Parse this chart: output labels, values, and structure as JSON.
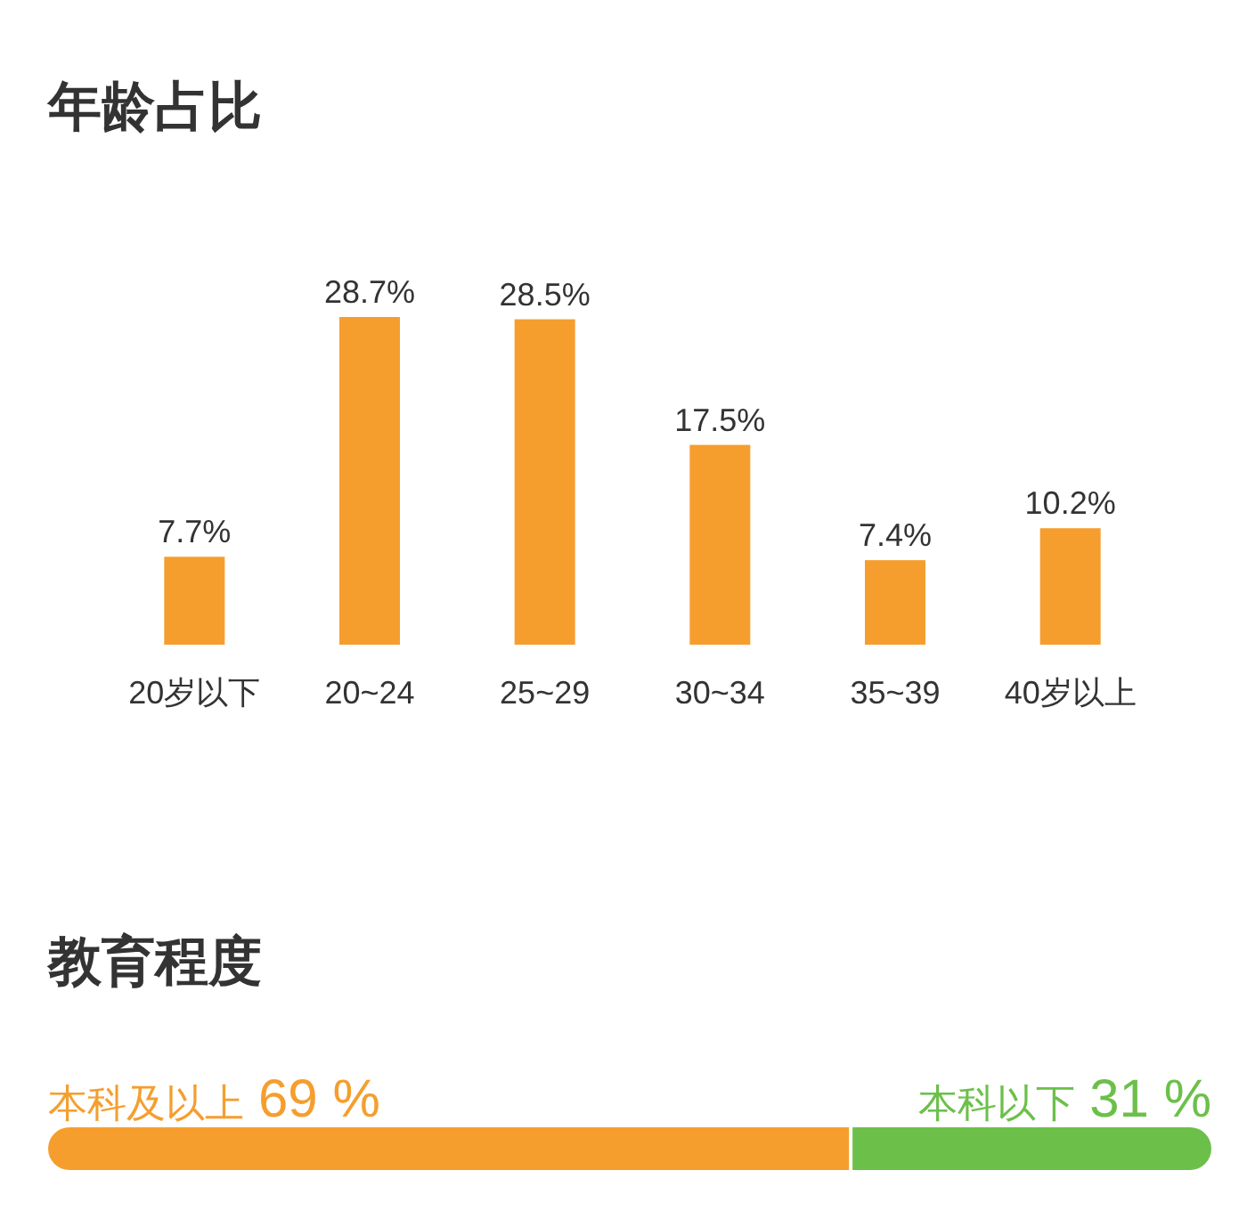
{
  "chart_data": [
    {
      "type": "bar",
      "title": "年龄占比",
      "categories": [
        "20岁以下",
        "20~24",
        "25~29",
        "30~34",
        "35~39",
        "40岁以上"
      ],
      "values": [
        7.7,
        28.7,
        28.5,
        17.5,
        7.4,
        10.2
      ],
      "value_labels": [
        "7.7%",
        "28.7%",
        "28.5%",
        "17.5%",
        "7.4%",
        "10.2%"
      ],
      "color": "#f59e2e"
    },
    {
      "type": "bar",
      "title": "教育程度",
      "orientation": "horizontal",
      "stacked": true,
      "categories": [
        null
      ],
      "series": [
        {
          "name": "本科及以上",
          "color": "#f59e2e",
          "values": [
            69
          ],
          "value_labels": [
            "69 %"
          ]
        },
        {
          "name": "本科以下",
          "color": "#6cc04a",
          "values": [
            31
          ],
          "value_labels": [
            "31 %"
          ]
        }
      ]
    }
  ]
}
